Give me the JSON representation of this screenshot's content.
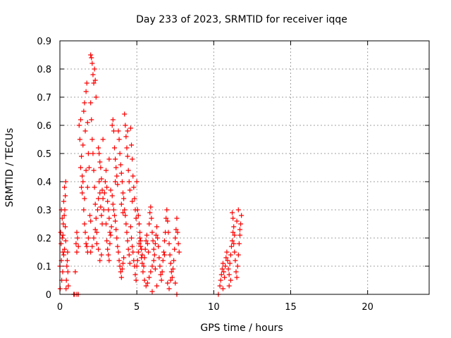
{
  "chart_data": {
    "type": "scatter",
    "title": "Day 233 of 2023, SRMTID for receiver iqqe",
    "xlabel": "GPS time / hours",
    "ylabel": "SRMTID / TECUs",
    "xlim": [
      0,
      24
    ],
    "ylim": [
      0,
      0.9
    ],
    "xticks": [
      0,
      5,
      10,
      15,
      20
    ],
    "yticks": [
      0,
      0.1,
      0.2,
      0.3,
      0.4,
      0.5,
      0.6,
      0.7,
      0.8,
      0.9
    ],
    "xtick_labels": [
      "0",
      "5",
      "10",
      "15",
      "20"
    ],
    "ytick_labels": [
      "0",
      "0.1",
      "0.2",
      "0.3",
      "0.4",
      "0.5",
      "0.6",
      "0.7",
      "0.8",
      "0.9"
    ],
    "grid": true,
    "marker": "+",
    "marker_color": "#ff0000",
    "series": [
      {
        "name": "SRMTID",
        "points": [
          [
            0.0,
            0.1
          ],
          [
            0.02,
            0.02
          ],
          [
            0.05,
            0.22
          ],
          [
            0.08,
            0.18
          ],
          [
            0.1,
            0.12
          ],
          [
            0.12,
            0.05
          ],
          [
            0.15,
            0.2
          ],
          [
            0.18,
            0.08
          ],
          [
            0.2,
            0.15
          ],
          [
            0.22,
            0.25
          ],
          [
            0.25,
            0.33
          ],
          [
            0.28,
            0.28
          ],
          [
            0.3,
            0.38
          ],
          [
            0.32,
            0.3
          ],
          [
            0.35,
            0.24
          ],
          [
            0.38,
            0.19
          ],
          [
            0.4,
            0.02
          ],
          [
            0.42,
            0.05
          ],
          [
            0.45,
            0.1
          ],
          [
            0.48,
            0.12
          ],
          [
            0.5,
            0.15
          ],
          [
            0.52,
            0.08
          ],
          [
            0.55,
            0.03
          ],
          [
            0.1,
            0.3
          ],
          [
            0.15,
            0.27
          ],
          [
            0.2,
            0.21
          ],
          [
            0.35,
            0.35
          ],
          [
            0.38,
            0.4
          ],
          [
            0.3,
            0.16
          ],
          [
            0.25,
            0.14
          ],
          [
            0.9,
            0.0
          ],
          [
            0.95,
            0.0
          ],
          [
            1.1,
            0.0
          ],
          [
            1.2,
            0.0
          ],
          [
            1.0,
            0.08
          ],
          [
            1.05,
            0.18
          ],
          [
            1.1,
            0.15
          ],
          [
            1.15,
            0.2
          ],
          [
            1.1,
            0.22
          ],
          [
            1.2,
            0.17
          ],
          [
            1.25,
            0.6
          ],
          [
            1.3,
            0.55
          ],
          [
            1.35,
            0.62
          ],
          [
            1.4,
            0.38
          ],
          [
            1.45,
            0.42
          ],
          [
            1.5,
            0.53
          ],
          [
            1.55,
            0.65
          ],
          [
            1.6,
            0.68
          ],
          [
            1.65,
            0.58
          ],
          [
            1.7,
            0.72
          ],
          [
            1.75,
            0.75
          ],
          [
            1.8,
            0.61
          ],
          [
            1.85,
            0.5
          ],
          [
            1.9,
            0.45
          ],
          [
            1.95,
            0.28
          ],
          [
            2.0,
            0.26
          ],
          [
            1.5,
            0.4
          ],
          [
            1.55,
            0.3
          ],
          [
            1.6,
            0.25
          ],
          [
            1.65,
            0.22
          ],
          [
            1.7,
            0.18
          ],
          [
            1.75,
            0.17
          ],
          [
            1.8,
            0.15
          ],
          [
            1.85,
            0.2
          ],
          [
            1.35,
            0.45
          ],
          [
            1.4,
            0.49
          ],
          [
            1.45,
            0.36
          ],
          [
            1.6,
            0.34
          ],
          [
            1.7,
            0.44
          ],
          [
            1.8,
            0.38
          ],
          [
            2.0,
            0.85
          ],
          [
            2.05,
            0.84
          ],
          [
            2.1,
            0.82
          ],
          [
            2.15,
            0.78
          ],
          [
            2.2,
            0.75
          ],
          [
            2.25,
            0.8
          ],
          [
            2.3,
            0.76
          ],
          [
            2.35,
            0.7
          ],
          [
            2.0,
            0.68
          ],
          [
            2.05,
            0.62
          ],
          [
            2.1,
            0.55
          ],
          [
            2.15,
            0.5
          ],
          [
            2.2,
            0.44
          ],
          [
            2.25,
            0.38
          ],
          [
            2.3,
            0.32
          ],
          [
            2.35,
            0.27
          ],
          [
            2.4,
            0.22
          ],
          [
            2.45,
            0.3
          ],
          [
            2.5,
            0.34
          ],
          [
            2.55,
            0.4
          ],
          [
            2.6,
            0.36
          ],
          [
            2.65,
            0.31
          ],
          [
            2.7,
            0.28
          ],
          [
            2.75,
            0.25
          ],
          [
            2.5,
            0.52
          ],
          [
            2.55,
            0.5
          ],
          [
            2.6,
            0.47
          ],
          [
            2.65,
            0.45
          ],
          [
            2.7,
            0.41
          ],
          [
            2.75,
            0.37
          ],
          [
            2.8,
            0.34
          ],
          [
            2.85,
            0.3
          ],
          [
            2.0,
            0.15
          ],
          [
            2.1,
            0.17
          ],
          [
            2.2,
            0.2
          ],
          [
            2.3,
            0.23
          ],
          [
            2.4,
            0.18
          ],
          [
            2.5,
            0.16
          ],
          [
            2.6,
            0.12
          ],
          [
            2.7,
            0.14
          ],
          [
            2.9,
            0.36
          ],
          [
            2.95,
            0.4
          ],
          [
            3.0,
            0.44
          ],
          [
            3.05,
            0.38
          ],
          [
            3.1,
            0.33
          ],
          [
            3.15,
            0.3
          ],
          [
            3.2,
            0.27
          ],
          [
            3.25,
            0.22
          ],
          [
            3.0,
            0.25
          ],
          [
            3.05,
            0.19
          ],
          [
            3.1,
            0.16
          ],
          [
            3.15,
            0.14
          ],
          [
            3.2,
            0.12
          ],
          [
            3.25,
            0.18
          ],
          [
            3.3,
            0.21
          ],
          [
            3.35,
            0.24
          ],
          [
            3.4,
            0.6
          ],
          [
            3.45,
            0.62
          ],
          [
            3.5,
            0.58
          ],
          [
            3.55,
            0.52
          ],
          [
            3.6,
            0.48
          ],
          [
            3.65,
            0.45
          ],
          [
            3.7,
            0.42
          ],
          [
            3.75,
            0.39
          ],
          [
            3.4,
            0.35
          ],
          [
            3.45,
            0.32
          ],
          [
            3.5,
            0.3
          ],
          [
            3.55,
            0.28
          ],
          [
            3.6,
            0.26
          ],
          [
            3.65,
            0.23
          ],
          [
            3.7,
            0.2
          ],
          [
            3.75,
            0.17
          ],
          [
            3.8,
            0.58
          ],
          [
            3.85,
            0.55
          ],
          [
            3.9,
            0.5
          ],
          [
            3.95,
            0.46
          ],
          [
            4.0,
            0.43
          ],
          [
            4.05,
            0.4
          ],
          [
            4.1,
            0.36
          ],
          [
            4.15,
            0.34
          ],
          [
            3.8,
            0.15
          ],
          [
            3.85,
            0.12
          ],
          [
            3.9,
            0.1
          ],
          [
            3.95,
            0.08
          ],
          [
            4.0,
            0.06
          ],
          [
            4.05,
            0.09
          ],
          [
            4.1,
            0.11
          ],
          [
            4.15,
            0.13
          ],
          [
            4.2,
            0.64
          ],
          [
            4.25,
            0.6
          ],
          [
            4.3,
            0.56
          ],
          [
            4.35,
            0.52
          ],
          [
            4.4,
            0.49
          ],
          [
            4.45,
            0.44
          ],
          [
            4.5,
            0.4
          ],
          [
            4.55,
            0.37
          ],
          [
            4.2,
            0.3
          ],
          [
            4.25,
            0.28
          ],
          [
            4.3,
            0.25
          ],
          [
            4.35,
            0.22
          ],
          [
            4.4,
            0.19
          ],
          [
            4.45,
            0.16
          ],
          [
            4.5,
            0.14
          ],
          [
            4.55,
            0.11
          ],
          [
            4.6,
            0.59
          ],
          [
            4.65,
            0.53
          ],
          [
            4.7,
            0.48
          ],
          [
            4.75,
            0.42
          ],
          [
            4.8,
            0.38
          ],
          [
            4.85,
            0.34
          ],
          [
            4.9,
            0.3
          ],
          [
            4.95,
            0.27
          ],
          [
            4.6,
            0.24
          ],
          [
            4.65,
            0.2
          ],
          [
            4.7,
            0.17
          ],
          [
            4.75,
            0.15
          ],
          [
            4.8,
            0.12
          ],
          [
            4.85,
            0.1
          ],
          [
            4.9,
            0.07
          ],
          [
            4.95,
            0.05
          ],
          [
            4.0,
            0.32
          ],
          [
            4.1,
            0.29
          ],
          [
            3.6,
            0.4
          ],
          [
            3.3,
            0.37
          ],
          [
            2.8,
            0.55
          ],
          [
            3.2,
            0.48
          ],
          [
            4.4,
            0.58
          ],
          [
            4.7,
            0.33
          ],
          [
            5.0,
            0.4
          ],
          [
            5.05,
            0.3
          ],
          [
            5.1,
            0.28
          ],
          [
            5.15,
            0.25
          ],
          [
            5.2,
            0.22
          ],
          [
            5.25,
            0.19
          ],
          [
            5.3,
            0.16
          ],
          [
            5.35,
            0.14
          ],
          [
            5.0,
            0.1
          ],
          [
            5.05,
            0.12
          ],
          [
            5.1,
            0.15
          ],
          [
            5.15,
            0.18
          ],
          [
            5.2,
            0.2
          ],
          [
            5.25,
            0.17
          ],
          [
            5.3,
            0.13
          ],
          [
            5.35,
            0.11
          ],
          [
            5.4,
            0.08
          ],
          [
            5.45,
            0.1
          ],
          [
            5.5,
            0.13
          ],
          [
            5.55,
            0.16
          ],
          [
            5.6,
            0.19
          ],
          [
            5.65,
            0.21
          ],
          [
            5.7,
            0.18
          ],
          [
            5.75,
            0.15
          ],
          [
            5.5,
            0.05
          ],
          [
            5.6,
            0.03
          ],
          [
            5.7,
            0.04
          ],
          [
            5.8,
            0.06
          ],
          [
            5.9,
            0.08
          ],
          [
            6.0,
            0.1
          ],
          [
            6.1,
            0.12
          ],
          [
            6.2,
            0.09
          ],
          [
            5.8,
            0.25
          ],
          [
            5.85,
            0.29
          ],
          [
            5.9,
            0.31
          ],
          [
            5.95,
            0.27
          ],
          [
            6.0,
            0.22
          ],
          [
            6.05,
            0.19
          ],
          [
            6.1,
            0.16
          ],
          [
            6.15,
            0.14
          ],
          [
            6.2,
            0.18
          ],
          [
            6.25,
            0.21
          ],
          [
            6.3,
            0.24
          ],
          [
            6.35,
            0.2
          ],
          [
            6.4,
            0.17
          ],
          [
            6.45,
            0.13
          ],
          [
            6.5,
            0.1
          ],
          [
            6.55,
            0.07
          ],
          [
            6.6,
            0.05
          ],
          [
            6.65,
            0.08
          ],
          [
            6.7,
            0.12
          ],
          [
            6.75,
            0.15
          ],
          [
            6.8,
            0.19
          ],
          [
            6.85,
            0.22
          ],
          [
            6.9,
            0.27
          ],
          [
            6.95,
            0.3
          ],
          [
            7.0,
            0.26
          ],
          [
            7.05,
            0.22
          ],
          [
            7.1,
            0.18
          ],
          [
            7.15,
            0.14
          ],
          [
            7.2,
            0.11
          ],
          [
            7.25,
            0.08
          ],
          [
            7.3,
            0.06
          ],
          [
            7.35,
            0.09
          ],
          [
            7.4,
            0.12
          ],
          [
            7.45,
            0.16
          ],
          [
            7.5,
            0.2
          ],
          [
            7.55,
            0.23
          ],
          [
            7.6,
            0.27
          ],
          [
            7.65,
            0.22
          ],
          [
            7.7,
            0.18
          ],
          [
            7.75,
            0.15
          ],
          [
            7.0,
            0.04
          ],
          [
            7.1,
            0.02
          ],
          [
            7.2,
            0.05
          ],
          [
            6.3,
            0.03
          ],
          [
            6.0,
            0.01
          ],
          [
            7.5,
            0.04
          ],
          [
            7.6,
            0.0
          ],
          [
            6.8,
            0.14
          ],
          [
            10.3,
            0.0
          ],
          [
            10.4,
            0.03
          ],
          [
            10.45,
            0.05
          ],
          [
            10.5,
            0.07
          ],
          [
            10.55,
            0.09
          ],
          [
            10.6,
            0.11
          ],
          [
            10.65,
            0.08
          ],
          [
            10.7,
            0.06
          ],
          [
            10.75,
            0.1
          ],
          [
            10.8,
            0.13
          ],
          [
            10.85,
            0.15
          ],
          [
            10.9,
            0.12
          ],
          [
            10.95,
            0.09
          ],
          [
            11.0,
            0.07
          ],
          [
            11.05,
            0.11
          ],
          [
            11.1,
            0.14
          ],
          [
            11.15,
            0.17
          ],
          [
            11.2,
            0.19
          ],
          [
            11.25,
            0.22
          ],
          [
            11.3,
            0.18
          ],
          [
            11.35,
            0.15
          ],
          [
            11.4,
            0.12
          ],
          [
            11.45,
            0.08
          ],
          [
            11.5,
            0.06
          ],
          [
            11.55,
            0.1
          ],
          [
            11.6,
            0.14
          ],
          [
            11.65,
            0.18
          ],
          [
            11.7,
            0.21
          ],
          [
            11.75,
            0.25
          ],
          [
            11.8,
            0.28
          ],
          [
            11.6,
            0.3
          ],
          [
            11.5,
            0.26
          ],
          [
            11.2,
            0.29
          ],
          [
            11.25,
            0.27
          ],
          [
            11.3,
            0.24
          ],
          [
            11.35,
            0.21
          ],
          [
            11.0,
            0.03
          ],
          [
            11.1,
            0.05
          ],
          [
            10.6,
            0.02
          ],
          [
            11.7,
            0.23
          ]
        ]
      }
    ]
  }
}
